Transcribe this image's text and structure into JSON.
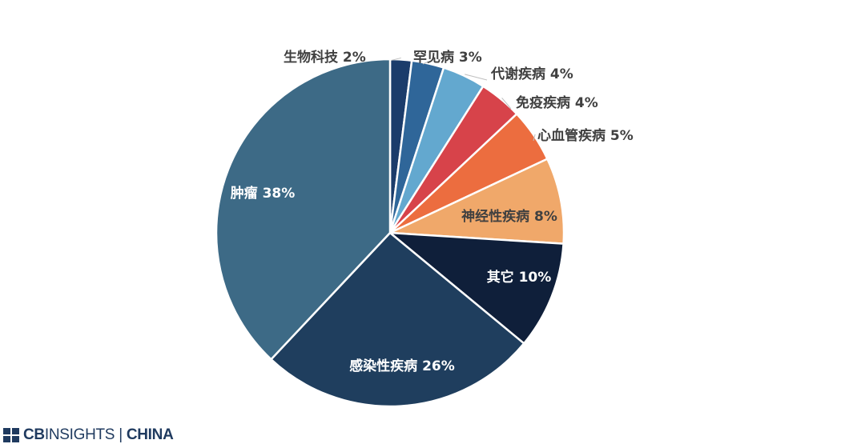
{
  "chart_data": {
    "type": "pie",
    "title": "",
    "slices": [
      {
        "label": "生物科技 2%",
        "name": "生物科技",
        "value": 2,
        "color": "#1b3c6b"
      },
      {
        "label": "罕见病 3%",
        "name": "罕见病",
        "value": 3,
        "color": "#2f6699"
      },
      {
        "label": "代谢疾病 4%",
        "name": "代谢疾病",
        "value": 4,
        "color": "#63a8cf"
      },
      {
        "label": "免疫疾病 4%",
        "name": "免疫疾病",
        "value": 4,
        "color": "#d7434a"
      },
      {
        "label": "心血管疾病 5%",
        "name": "心血管疾病",
        "value": 5,
        "color": "#ec6d3f"
      },
      {
        "label": "神经性疾病 8%",
        "name": "神经性疾病",
        "value": 8,
        "color": "#f0a86a"
      },
      {
        "label": "其它 10%",
        "name": "其它",
        "value": 10,
        "color": "#0f1f3a"
      },
      {
        "label": "感染性疾病 26%",
        "name": "感染性疾病",
        "value": 26,
        "color": "#1f3e5e"
      },
      {
        "label": "肿瘤 38%",
        "name": "肿瘤",
        "value": 38,
        "color": "#3d6a86"
      }
    ]
  },
  "branding": {
    "cb": "CB",
    "insights": "INSIGHTS",
    "separator": "|",
    "region": "CHINA"
  }
}
